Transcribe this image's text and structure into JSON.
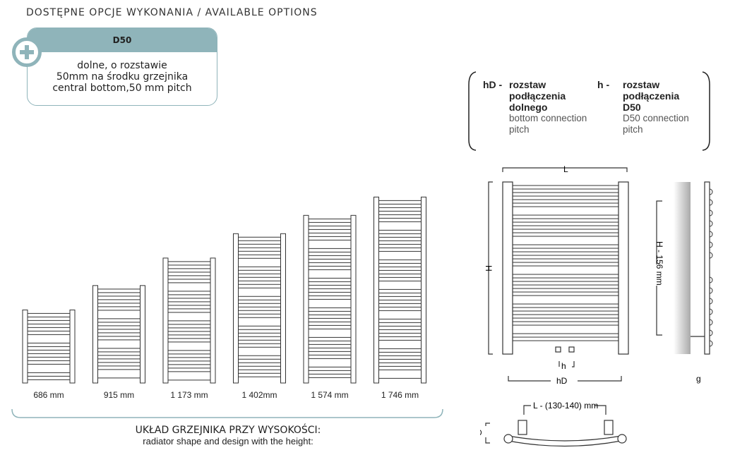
{
  "header": {
    "title": "DOSTĘPNE OPCJE WYKONANIA / AVAILABLE OPTIONS"
  },
  "option_card": {
    "code": "D50",
    "description_pl_1": "dolne, o rozstawie",
    "description_pl_2": "50mm na środku grzejnika",
    "description_en": "central bottom,50 mm pitch",
    "icon": "plus-circle-icon",
    "accent_color": "#8fb4ba"
  },
  "radiators": [
    {
      "label": "686 mm",
      "height_mm": 686
    },
    {
      "label": "915 mm",
      "height_mm": 915
    },
    {
      "label": "1 173 mm",
      "height_mm": 1173
    },
    {
      "label": "1 402mm",
      "height_mm": 1402
    },
    {
      "label": "1 574 mm",
      "height_mm": 1574
    },
    {
      "label": "1 746 mm",
      "height_mm": 1746
    }
  ],
  "caption": {
    "pl": "UKŁAD GRZEJNIKA PRZY WYSOKOŚCI:",
    "en": "radiator shape and design with the height:"
  },
  "legend": {
    "hD": {
      "symbol": "hD -",
      "pl_1": "rozstaw",
      "pl_2": "podłączenia",
      "pl_3": "dolnego",
      "en_1": "bottom connection",
      "en_2": "pitch"
    },
    "h": {
      "symbol": "h -",
      "pl_1": "rozstaw",
      "pl_2": "podłączenia",
      "pl_3": "D50",
      "en_1": "D50 connection",
      "en_2": "pitch"
    }
  },
  "dimensions": {
    "L": "L",
    "H": "H",
    "h": "h",
    "hD": "hD",
    "H156": "H - 156 mm",
    "g": "g",
    "G": "G",
    "top_width": "L - (130-140) mm"
  }
}
